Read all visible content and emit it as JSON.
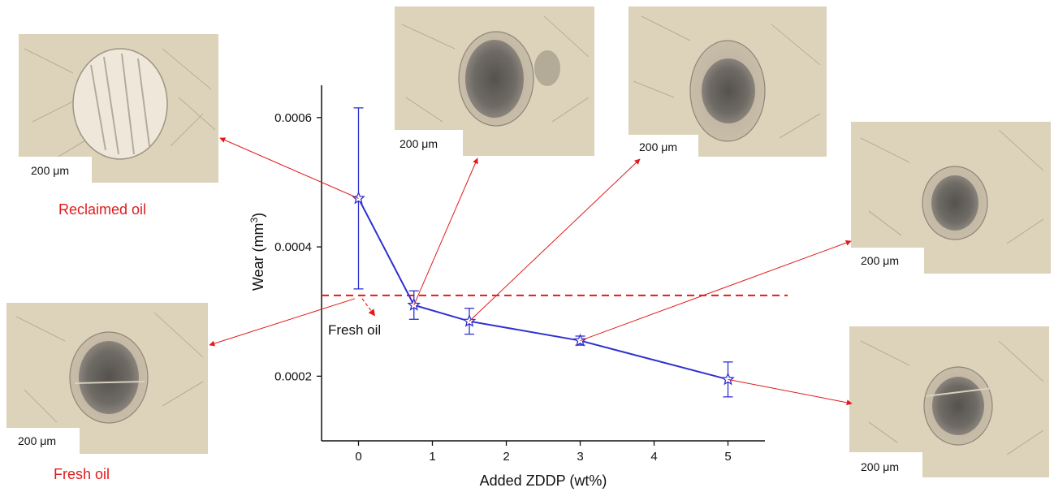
{
  "chart_data": {
    "type": "line",
    "xlabel": "Added ZDDP (wt%)",
    "ylabel": "Wear (mm",
    "ylabel_superscript": "3",
    "ylabel_suffix": ")",
    "xlim": [
      -0.5,
      5.5
    ],
    "ylim": [
      0.0001,
      0.00065
    ],
    "x_ticks": [
      0,
      1,
      2,
      3,
      4,
      5
    ],
    "y_ticks": [
      0.0002,
      0.0004,
      0.0006
    ],
    "y_tick_labels": [
      "0.0002",
      "0.0004",
      "0.0006"
    ],
    "series": [
      {
        "marker": "star",
        "color": "#3030d0",
        "x": [
          0,
          0.75,
          1.5,
          3,
          5
        ],
        "y": [
          0.000475,
          0.00031,
          0.000285,
          0.000255,
          0.000195
        ],
        "err": [
          0.00014,
          2.2e-05,
          2e-05,
          7e-06,
          2.7e-05
        ]
      }
    ],
    "reference_line": {
      "label": "Fresh oil",
      "y": 0.000325,
      "color": "#e01b1b",
      "style": "dashed"
    },
    "grid": false
  },
  "micrographs": [
    {
      "scale": "200 μm",
      "caption": "Reclaimed oil",
      "points_to": 0
    },
    {
      "scale": "200 μm",
      "caption": "Fresh oil",
      "points_to": "fresh"
    },
    {
      "scale": "200 μm",
      "caption": "",
      "points_to": 1
    },
    {
      "scale": "200 μm",
      "caption": "",
      "points_to": 2
    },
    {
      "scale": "200 μm",
      "caption": "",
      "points_to": 3
    },
    {
      "scale": "200 μm",
      "caption": "",
      "points_to": 4
    }
  ],
  "colors": {
    "micrograph_bg": "#ddd2ba",
    "wear_scar": "#6a6660",
    "arrow": "#e01b1b"
  }
}
